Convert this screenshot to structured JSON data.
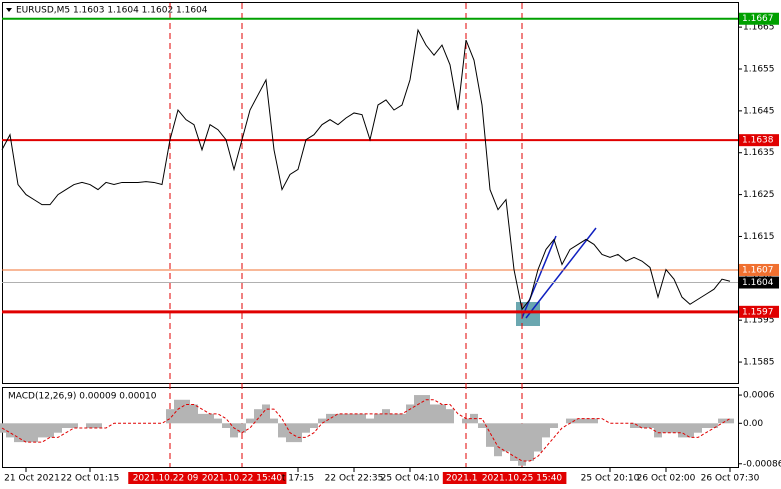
{
  "chart_data": [
    {
      "type": "line",
      "title": "EURUSD,M5  1.1603 1.1604 1.1602 1.1604",
      "color": "#000000",
      "categories": [
        null,
        null,
        null,
        "21 Oct 2021",
        null,
        null,
        null,
        null,
        null,
        null,
        null,
        "22 Oct 01:15",
        null,
        null,
        null,
        null,
        null,
        null,
        null,
        null,
        null,
        "2021.10.22 09:5",
        null,
        null,
        null,
        null,
        null,
        null,
        null,
        null,
        "2021.10.22 15:40",
        null,
        null,
        null,
        null,
        null,
        null,
        "t 17:15",
        null,
        null,
        null,
        null,
        null,
        null,
        "22 Oct 22:35",
        null,
        null,
        null,
        null,
        null,
        null,
        "25 Oct 04:10",
        null,
        null,
        null,
        null,
        null,
        null,
        "2021.10.",
        null,
        null,
        null,
        null,
        null,
        null,
        "2021.10.25 15:40",
        null,
        null,
        null,
        null,
        null,
        null,
        null,
        null,
        null,
        null,
        "25 Oct 20:10",
        null,
        null,
        null,
        null,
        null,
        null,
        "26 Oct 02:00",
        null,
        null,
        null,
        null,
        null,
        null,
        null,
        "26 Oct 07:30"
      ],
      "values": [
        1.16357,
        1.16393,
        1.16274,
        1.1625,
        1.16238,
        1.16226,
        1.16226,
        1.1625,
        1.16262,
        1.16274,
        1.16279,
        1.16274,
        1.16262,
        1.16279,
        1.16274,
        1.16279,
        1.16279,
        1.16279,
        1.16281,
        1.16279,
        1.16274,
        1.16381,
        1.16452,
        1.16429,
        1.16417,
        1.16357,
        1.16417,
        1.16405,
        1.16381,
        1.1631,
        1.16381,
        1.16452,
        1.16488,
        1.16524,
        1.16357,
        1.16262,
        1.16298,
        1.1631,
        1.16381,
        1.16393,
        1.16417,
        1.16429,
        1.16417,
        1.16433,
        1.16445,
        1.16441,
        1.16381,
        1.16464,
        1.16476,
        1.16452,
        1.16464,
        1.16524,
        1.16643,
        1.16607,
        1.16583,
        1.16607,
        1.1656,
        1.16452,
        1.16619,
        1.16571,
        1.16464,
        1.16262,
        1.16214,
        1.16238,
        1.16071,
        1.15976,
        1.16,
        1.16071,
        1.16119,
        1.16143,
        1.16083,
        1.16119,
        1.16131,
        1.16143,
        1.16131,
        1.16107,
        1.161,
        1.16107,
        1.16091,
        1.161,
        1.16091,
        1.16076,
        1.16005,
        1.16071,
        1.16048,
        1.16005,
        1.15988,
        1.16,
        1.16012,
        1.16024,
        1.16048,
        1.16043
      ],
      "ylim": [
        1.158,
        1.1671
      ],
      "yticks": [
        1.1665,
        1.1655,
        1.1645,
        1.1635,
        1.1625,
        1.1615,
        1.1605,
        1.1595,
        1.1585
      ],
      "markers": [
        21,
        30,
        58,
        65
      ],
      "marker_color": "#e00000",
      "hlines": [
        {
          "value": 1.1667,
          "color": "#00a000"
        },
        {
          "value": 1.1638,
          "color": "#e00000"
        },
        {
          "value": 1.1607,
          "color": "#f07030"
        },
        {
          "value": 1.1604,
          "color": "#000000"
        },
        {
          "value": 1.1597,
          "color": "#e00000"
        }
      ]
    },
    {
      "type": "macd",
      "title": "MACD(12,26,9) 0.00009 0.00010",
      "color": "#b4b4b4",
      "signal_color": "#e00000",
      "values": [
        -0.0002,
        -0.0003,
        -0.0004,
        -0.0004,
        -0.0004,
        -0.0003,
        -0.0003,
        -0.0002,
        -0.0001,
        -0.0001,
        0,
        -0.0001,
        -0.0001,
        0,
        0,
        0,
        0,
        0,
        0,
        0,
        0,
        0.0003,
        0.0005,
        0.0005,
        0.0004,
        0.0002,
        0.0002,
        0.0001,
        -0.0001,
        -0.0003,
        -0.0002,
        0.0001,
        0.0003,
        0.0004,
        0.0001,
        -0.0003,
        -0.0004,
        -0.0004,
        -0.0002,
        -0.0001,
        0.0001,
        0.0002,
        0.0002,
        0.0002,
        0.0002,
        0.0002,
        0.0001,
        0.0002,
        0.0003,
        0.0002,
        0.0002,
        0.0004,
        0.0006,
        0.0006,
        0.0004,
        0.0004,
        0.0003,
        0,
        0.0001,
        0.0002,
        -0.0001,
        -0.0005,
        -0.0007,
        -0.0006,
        -0.0008,
        -0.0009,
        -0.0008,
        -0.0006,
        -0.0003,
        -0.0001,
        0,
        0.0001,
        0.0001,
        0.0001,
        0.0001,
        0,
        0,
        0,
        0,
        -0.0001,
        -0.0001,
        -0.0001,
        -0.0003,
        -0.0002,
        -0.0002,
        -0.0003,
        -0.0003,
        -0.0002,
        -0.0001,
        -0.0001,
        0.0001,
        0.0001
      ],
      "signal": [
        -0.0001,
        -0.0002,
        -0.0003,
        -0.0004,
        -0.0004,
        -0.0004,
        -0.0003,
        -0.0003,
        -0.0002,
        -0.0001,
        -0.0001,
        -0.0001,
        -0.0001,
        -0.0001,
        0,
        0,
        0,
        0,
        0,
        0,
        0,
        0.0001,
        0.0003,
        0.0004,
        0.0004,
        0.0003,
        0.0002,
        0.0002,
        0.0001,
        -0.0001,
        -0.0002,
        -0.0001,
        0.0001,
        0.0003,
        0.0003,
        0.0001,
        -0.0002,
        -0.0003,
        -0.0003,
        -0.0002,
        0,
        0.0001,
        0.0002,
        0.0002,
        0.0002,
        0.0002,
        0.0002,
        0.0002,
        0.0002,
        0.0002,
        0.0002,
        0.0003,
        0.0004,
        0.0005,
        0.0005,
        0.0004,
        0.0004,
        0.0002,
        0.0001,
        0.0001,
        0.0001,
        -0.0002,
        -0.0005,
        -0.0006,
        -0.0007,
        -0.0008,
        -0.0008,
        -0.0007,
        -0.0005,
        -0.0003,
        -0.0001,
        0,
        0.0001,
        0.0001,
        0.0001,
        0.0001,
        0,
        0,
        0,
        0,
        -0.0001,
        -0.0001,
        -0.0002,
        -0.0002,
        -0.0002,
        -0.0002,
        -0.0003,
        -0.0003,
        -0.0002,
        -0.0001,
        0,
        0.0001
      ],
      "ylim": [
        -0.00095,
        0.00075
      ],
      "yticks": [
        0.0006,
        {
          "value": 0,
          "label": "0.00"
        },
        -0.00086
      ]
    }
  ]
}
